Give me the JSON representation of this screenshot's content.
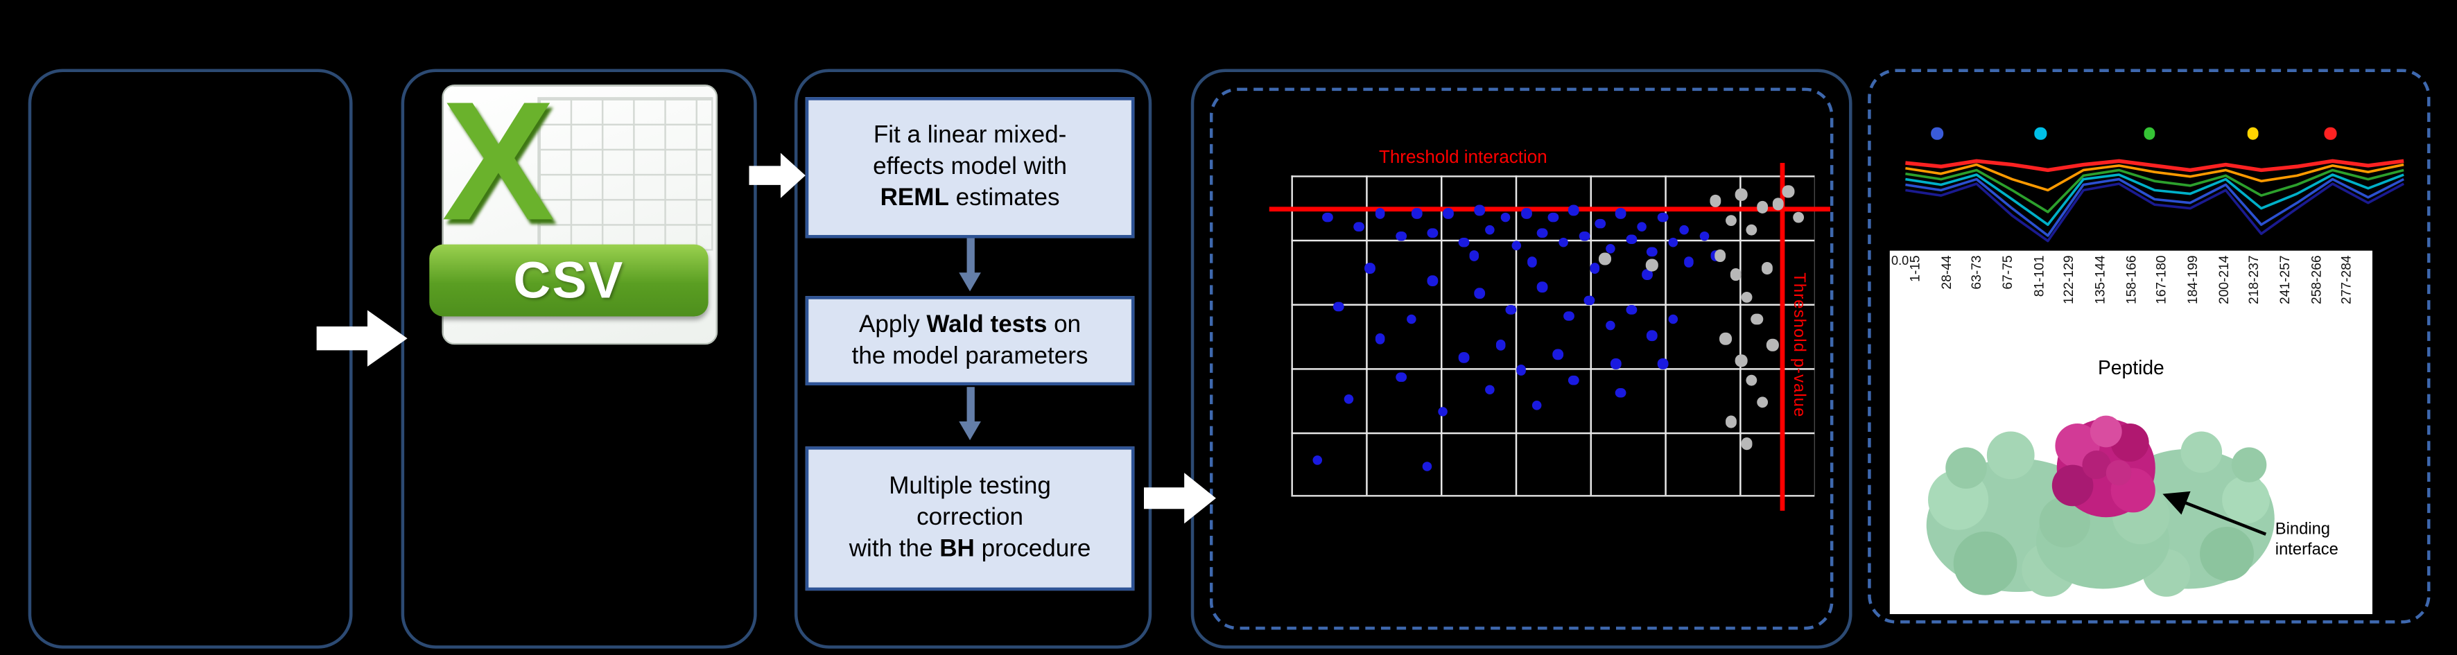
{
  "csv": {
    "x_letter": "X",
    "label": "CSV"
  },
  "steps": {
    "box1": {
      "l1": "Fit a linear mixed-",
      "l2": "effects model with",
      "l3_bold": "REML",
      "l3_rest": " estimates"
    },
    "box2": {
      "l1_pre": "Apply ",
      "l1_bold": "Wald tests",
      "l1_post": " on",
      "l2": "the model parameters"
    },
    "box3": {
      "l1": "Multiple testing",
      "l2": "correction",
      "l3_pre": "with the ",
      "l3_bold": "BH",
      "l3_post": " procedure"
    }
  },
  "structure": {
    "annotation_line1": "Binding",
    "annotation_line2": "interface"
  },
  "colors": {
    "accent_red": "#ff0000",
    "step_box_fill": "#dae3f3",
    "step_box_border": "#2e5395",
    "panel_border": "#2c4a73",
    "dashed_border": "#3e68ae",
    "step_arrow_blue": "#647ea8",
    "excel_green": "#6ab22c",
    "banner_green_dark": "#4e8f1d",
    "protein_surface_green": "#9ccfae",
    "binding_interface_magenta": "#c02080"
  },
  "chart_data": [
    {
      "type": "scatter",
      "units": "percent of plot area, x rightward, y downward",
      "grid": true,
      "threshold_labels": {
        "interaction": "Threshold interaction",
        "pvalue": "Threshold p-value"
      },
      "thresholds": {
        "horizontal_y_pct": 10,
        "vertical_x_pct": 93.5
      },
      "series": [
        {
          "name": "blue",
          "color": "#1a1ae0",
          "points": [
            [
              7,
              13
            ],
            [
              13,
              16
            ],
            [
              17,
              12
            ],
            [
              21,
              19
            ],
            [
              24,
              12
            ],
            [
              27,
              18
            ],
            [
              30,
              12
            ],
            [
              33,
              21
            ],
            [
              36,
              11
            ],
            [
              38,
              17
            ],
            [
              41,
              13
            ],
            [
              43,
              22
            ],
            [
              45,
              12
            ],
            [
              48,
              18
            ],
            [
              50,
              13
            ],
            [
              52,
              21
            ],
            [
              54,
              11
            ],
            [
              56,
              19
            ],
            [
              59,
              15
            ],
            [
              61,
              23
            ],
            [
              63,
              12
            ],
            [
              65,
              20
            ],
            [
              67,
              16
            ],
            [
              69,
              24
            ],
            [
              71,
              13
            ],
            [
              73,
              21
            ],
            [
              75,
              17
            ],
            [
              76,
              27
            ],
            [
              79,
              19
            ],
            [
              81,
              25
            ],
            [
              15,
              29
            ],
            [
              27,
              33
            ],
            [
              36,
              37
            ],
            [
              42,
              42
            ],
            [
              48,
              35
            ],
            [
              53,
              44
            ],
            [
              57,
              39
            ],
            [
              61,
              47
            ],
            [
              65,
              42
            ],
            [
              69,
              50
            ],
            [
              73,
              45
            ],
            [
              33,
              57
            ],
            [
              21,
              63
            ],
            [
              11,
              70
            ],
            [
              29,
              74
            ],
            [
              38,
              67
            ],
            [
              47,
              72
            ],
            [
              54,
              64
            ],
            [
              63,
              68
            ],
            [
              5,
              89
            ],
            [
              26,
              91
            ],
            [
              71,
              59
            ],
            [
              40,
              53
            ],
            [
              58,
              29
            ],
            [
              46,
              27
            ],
            [
              35,
              25
            ],
            [
              68,
              31
            ],
            [
              23,
              45
            ],
            [
              17,
              51
            ],
            [
              51,
              56
            ],
            [
              62,
              59
            ],
            [
              44,
              61
            ],
            [
              9,
              41
            ]
          ]
        },
        {
          "name": "gray",
          "color": "#b8b8b8",
          "points": [
            [
              81,
              8
            ],
            [
              84,
              14
            ],
            [
              86,
              6
            ],
            [
              88,
              17
            ],
            [
              90,
              10
            ],
            [
              82,
              25
            ],
            [
              85,
              31
            ],
            [
              87,
              38
            ],
            [
              89,
              45
            ],
            [
              83,
              51
            ],
            [
              86,
              58
            ],
            [
              88,
              64
            ],
            [
              90,
              71
            ],
            [
              84,
              77
            ],
            [
              87,
              84
            ],
            [
              91,
              29
            ],
            [
              92,
              53
            ],
            [
              60,
              26
            ],
            [
              69,
              28
            ],
            [
              93,
              9
            ],
            [
              95,
              5
            ],
            [
              97,
              13
            ]
          ]
        }
      ]
    },
    {
      "type": "line",
      "x_categories": [
        "1-15",
        "28-44",
        "63-73",
        "67-75",
        "81-101",
        "122-129",
        "135-144",
        "158-166",
        "167-180",
        "184-199",
        "200-214",
        "218-237",
        "241-257",
        "258-266",
        "277-284"
      ],
      "xlabel": "Peptide",
      "ytick_label": "0.0",
      "y_range_normalized": [
        0,
        1
      ],
      "series": [
        {
          "name": "red",
          "color": "#ff2222",
          "width": 2.4,
          "values": [
            0.88,
            0.84,
            0.9,
            0.86,
            0.8,
            0.86,
            0.9,
            0.85,
            0.8,
            0.86,
            0.8,
            0.84,
            0.9,
            0.85,
            0.9
          ]
        },
        {
          "name": "orange",
          "color": "#ff9a00",
          "width": 1.6,
          "values": [
            0.82,
            0.76,
            0.86,
            0.7,
            0.58,
            0.8,
            0.85,
            0.78,
            0.73,
            0.8,
            0.68,
            0.74,
            0.85,
            0.78,
            0.86
          ]
        },
        {
          "name": "green",
          "color": "#2ca02c",
          "width": 1.6,
          "values": [
            0.76,
            0.7,
            0.8,
            0.58,
            0.34,
            0.74,
            0.8,
            0.68,
            0.63,
            0.74,
            0.52,
            0.64,
            0.8,
            0.7,
            0.8
          ]
        },
        {
          "name": "teal",
          "color": "#00b0c8",
          "width": 1.6,
          "values": [
            0.7,
            0.64,
            0.75,
            0.48,
            0.2,
            0.7,
            0.75,
            0.58,
            0.54,
            0.7,
            0.38,
            0.54,
            0.75,
            0.6,
            0.75
          ]
        },
        {
          "name": "blue",
          "color": "#2b50d0",
          "width": 1.6,
          "values": [
            0.64,
            0.58,
            0.7,
            0.38,
            0.08,
            0.64,
            0.7,
            0.48,
            0.44,
            0.64,
            0.2,
            0.44,
            0.7,
            0.5,
            0.7
          ]
        },
        {
          "name": "navy",
          "color": "#1a1a90",
          "width": 1.6,
          "values": [
            0.58,
            0.52,
            0.65,
            0.3,
            0.02,
            0.58,
            0.65,
            0.42,
            0.38,
            0.58,
            0.1,
            0.38,
            0.65,
            0.44,
            0.65
          ]
        }
      ],
      "markers": [
        {
          "color": "#3a5bd9",
          "x_fraction": 0.08
        },
        {
          "color": "#00c0e8",
          "x_fraction": 0.28
        },
        {
          "color": "#35c435",
          "x_fraction": 0.49
        },
        {
          "color": "#ffd400",
          "x_fraction": 0.69
        },
        {
          "color": "#ff2222",
          "x_fraction": 0.84
        }
      ]
    }
  ]
}
